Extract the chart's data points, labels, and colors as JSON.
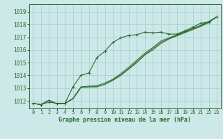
{
  "title": "Graphe pression niveau de la mer (hPa)",
  "background_color": "#cce8e8",
  "grid_color": "#aacfcf",
  "line_color": "#2d6a2d",
  "x_ticks": [
    0,
    1,
    2,
    3,
    4,
    5,
    6,
    7,
    8,
    9,
    10,
    11,
    12,
    13,
    14,
    15,
    16,
    17,
    18,
    19,
    20,
    21,
    22,
    23
  ],
  "x_tick_labels": [
    "0",
    "1",
    "2",
    "3",
    "4",
    "5",
    "6",
    "7",
    "8",
    "9",
    "10",
    "11",
    "12",
    "13",
    "14",
    "15",
    "16",
    "17",
    "18",
    "19",
    "20",
    "21",
    "22",
    "23"
  ],
  "y_ticks": [
    1012,
    1013,
    1014,
    1015,
    1016,
    1017,
    1018,
    1019
  ],
  "ylim": [
    1011.4,
    1019.6
  ],
  "xlim": [
    -0.5,
    23.5
  ],
  "series": [
    [
      1011.8,
      1011.7,
      1011.9,
      1011.8,
      1011.8,
      1013.1,
      1014.0,
      1014.2,
      1015.4,
      1015.9,
      1016.6,
      1016.95,
      1017.15,
      1017.2,
      1017.4,
      1017.35,
      1017.4,
      1017.25,
      1017.25,
      1017.5,
      1017.8,
      1018.1,
      1018.2,
      1018.6
    ],
    [
      1011.8,
      1011.7,
      1012.05,
      1011.75,
      1011.8,
      1012.15,
      1013.05,
      1013.1,
      1013.1,
      1013.3,
      1013.6,
      1014.0,
      1014.5,
      1015.0,
      1015.6,
      1016.0,
      1016.5,
      1016.85,
      1017.1,
      1017.35,
      1017.6,
      1017.85,
      1018.15,
      1018.6
    ],
    [
      1011.8,
      1011.7,
      1012.05,
      1011.75,
      1011.8,
      1012.15,
      1013.05,
      1013.1,
      1013.1,
      1013.3,
      1013.65,
      1014.05,
      1014.55,
      1015.1,
      1015.65,
      1016.1,
      1016.6,
      1016.9,
      1017.15,
      1017.4,
      1017.65,
      1017.9,
      1018.2,
      1018.6
    ],
    [
      1011.8,
      1011.7,
      1012.05,
      1011.75,
      1011.8,
      1012.2,
      1013.1,
      1013.15,
      1013.2,
      1013.4,
      1013.7,
      1014.15,
      1014.65,
      1015.2,
      1015.75,
      1016.2,
      1016.7,
      1016.95,
      1017.2,
      1017.45,
      1017.7,
      1017.95,
      1018.25,
      1018.6
    ]
  ],
  "title_fontsize": 6.0,
  "tick_fontsize": 5.0,
  "ytick_fontsize": 5.5
}
